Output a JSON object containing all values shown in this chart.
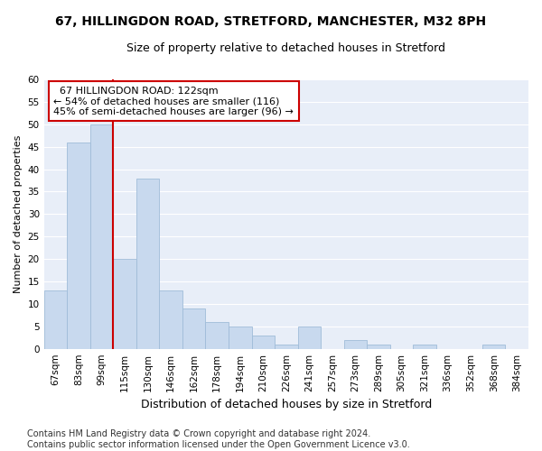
{
  "title1": "67, HILLINGDON ROAD, STRETFORD, MANCHESTER, M32 8PH",
  "title2": "Size of property relative to detached houses in Stretford",
  "xlabel": "Distribution of detached houses by size in Stretford",
  "ylabel": "Number of detached properties",
  "categories": [
    "67sqm",
    "83sqm",
    "99sqm",
    "115sqm",
    "130sqm",
    "146sqm",
    "162sqm",
    "178sqm",
    "194sqm",
    "210sqm",
    "226sqm",
    "241sqm",
    "257sqm",
    "273sqm",
    "289sqm",
    "305sqm",
    "321sqm",
    "336sqm",
    "352sqm",
    "368sqm",
    "384sqm"
  ],
  "values": [
    13,
    46,
    50,
    20,
    38,
    13,
    9,
    6,
    5,
    3,
    1,
    5,
    0,
    2,
    1,
    0,
    1,
    0,
    0,
    1,
    0
  ],
  "bar_color": "#c8d9ee",
  "bar_edge_color": "#a0bcd8",
  "vline_color": "#cc0000",
  "vline_pos": 3,
  "annotation_text": "  67 HILLINGDON ROAD: 122sqm\n← 54% of detached houses are smaller (116)\n45% of semi-detached houses are larger (96) →",
  "annotation_box_edgecolor": "#cc0000",
  "ylim": [
    0,
    60
  ],
  "yticks": [
    0,
    5,
    10,
    15,
    20,
    25,
    30,
    35,
    40,
    45,
    50,
    55,
    60
  ],
  "plot_bg_color": "#e8eef8",
  "fig_bg_color": "#ffffff",
  "grid_color": "#ffffff",
  "title1_fontsize": 10,
  "title2_fontsize": 9,
  "xlabel_fontsize": 9,
  "ylabel_fontsize": 8,
  "tick_fontsize": 7.5,
  "annotation_fontsize": 8,
  "footer_fontsize": 7,
  "footer": "Contains HM Land Registry data © Crown copyright and database right 2024.\nContains public sector information licensed under the Open Government Licence v3.0."
}
